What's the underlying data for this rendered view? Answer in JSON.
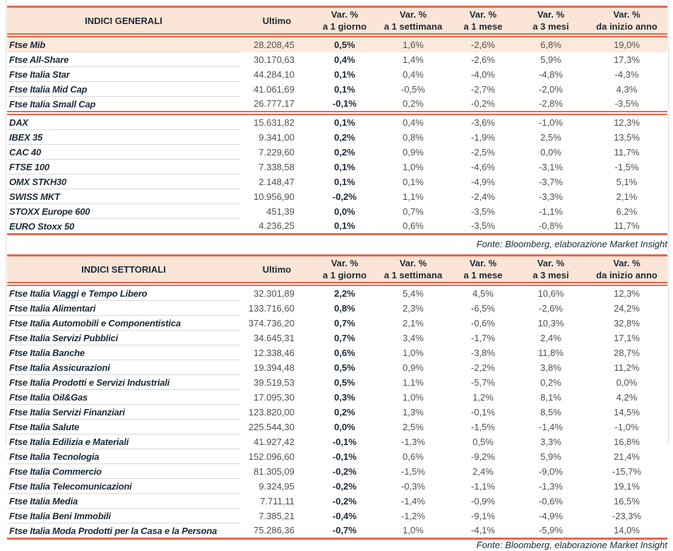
{
  "colors": {
    "accent_line": "#e8674e",
    "header_background": "#fbe5d6",
    "highlight_row_background": "#fce9dc",
    "heading_text": "#1b2a38",
    "value_text": "#4f4f4f",
    "row_separator": "#d9d9d9"
  },
  "columns": {
    "ultimo": "Ultimo",
    "var_label": "Var. %",
    "periods": [
      "a 1 giorno",
      "a 1 settimana",
      "a 1 mese",
      "a 3 mesi",
      "da inizio anno"
    ]
  },
  "tables": [
    {
      "title": "INDICI GENERALI",
      "source": "Fonte: Bloomberg, elaborazione Market Insight",
      "rows": [
        {
          "name": "Ftse Mib",
          "ultimo": "28.208,45",
          "pct": [
            "0,5%",
            "1,6%",
            "-2,6%",
            "6,8%",
            "19,0%"
          ],
          "highlight": true
        },
        {
          "name": "Ftse All-Share",
          "ultimo": "30.170,63",
          "pct": [
            "0,4%",
            "1,4%",
            "-2,6%",
            "5,9%",
            "17,3%"
          ]
        },
        {
          "name": "Ftse Italia Star",
          "ultimo": "44.284,10",
          "pct": [
            "0,1%",
            "0,4%",
            "-4,0%",
            "-4,8%",
            "-4,3%"
          ]
        },
        {
          "name": "Ftse Italia Mid Cap",
          "ultimo": "41.061,69",
          "pct": [
            "0,1%",
            "-0,5%",
            "-2,7%",
            "-2,0%",
            "4,3%"
          ]
        },
        {
          "name": "Ftse Italia Small Cap",
          "ultimo": "26.777,17",
          "pct": [
            "-0,1%",
            "0,2%",
            "-0,2%",
            "-2,8%",
            "-3,5%"
          ]
        },
        {
          "name": "DAX",
          "ultimo": "15.631,82",
          "pct": [
            "0,1%",
            "0,4%",
            "-3,6%",
            "-1,0%",
            "12,3%"
          ],
          "group_start": true
        },
        {
          "name": "IBEX 35",
          "ultimo": "9.341,00",
          "pct": [
            "0,2%",
            "0,8%",
            "-1,9%",
            "2,5%",
            "13,5%"
          ]
        },
        {
          "name": "CAC 40",
          "ultimo": "7.229,60",
          "pct": [
            "0,2%",
            "0,9%",
            "-2,5%",
            "0,0%",
            "11,7%"
          ]
        },
        {
          "name": "FTSE 100",
          "ultimo": "7.338,58",
          "pct": [
            "0,1%",
            "1,0%",
            "-4,6%",
            "-3,1%",
            "-1,5%"
          ]
        },
        {
          "name": "OMX STKH30",
          "ultimo": "2.148,47",
          "pct": [
            "0,1%",
            "0,1%",
            "-4,9%",
            "-3,7%",
            "5,1%"
          ]
        },
        {
          "name": "SWISS MKT",
          "ultimo": "10.956,90",
          "pct": [
            "-0,2%",
            "1,1%",
            "-2,4%",
            "-3,3%",
            "2,1%"
          ]
        },
        {
          "name": "STOXX Europe 600",
          "ultimo": "451,39",
          "pct": [
            "0,0%",
            "0,7%",
            "-3,5%",
            "-1,1%",
            "6,2%"
          ]
        },
        {
          "name": "EURO Stoxx 50",
          "ultimo": "4.236,25",
          "pct": [
            "0,1%",
            "0,6%",
            "-3,5%",
            "-0,8%",
            "11,7%"
          ]
        }
      ]
    },
    {
      "title": "INDICI SETTORIALI",
      "source": "Fonte: Bloomberg, elaborazione Market Insight",
      "rows": [
        {
          "name": "Ftse Italia Viaggi e Tempo Libero",
          "ultimo": "32.301,89",
          "pct": [
            "2,2%",
            "5,4%",
            "4,5%",
            "10,6%",
            "12,3%"
          ]
        },
        {
          "name": "Ftse Italia Alimentari",
          "ultimo": "133.716,60",
          "pct": [
            "0,8%",
            "2,3%",
            "-6,5%",
            "-2,6%",
            "24,2%"
          ]
        },
        {
          "name": "Ftse Italia Automobili e Componentistica",
          "ultimo": "374.736,20",
          "pct": [
            "0,7%",
            "2,1%",
            "-0,6%",
            "10,3%",
            "32,8%"
          ]
        },
        {
          "name": "Ftse Italia Servizi Pubblici",
          "ultimo": "34.645,31",
          "pct": [
            "0,7%",
            "3,4%",
            "-1,7%",
            "2,4%",
            "17,1%"
          ]
        },
        {
          "name": "Ftse Italia Banche",
          "ultimo": "12.338,46",
          "pct": [
            "0,6%",
            "1,0%",
            "-3,8%",
            "11,8%",
            "28,7%"
          ]
        },
        {
          "name": "Ftse Italia Assicurazioni",
          "ultimo": "19.394,48",
          "pct": [
            "0,5%",
            "0,9%",
            "-2,2%",
            "3,8%",
            "11,2%"
          ]
        },
        {
          "name": "Ftse Italia Prodotti e Servizi Industriali",
          "ultimo": "39.519,53",
          "pct": [
            "0,5%",
            "1,1%",
            "-5,7%",
            "0,2%",
            "0,0%"
          ]
        },
        {
          "name": "Ftse Italia Oil&Gas",
          "ultimo": "17.095,30",
          "pct": [
            "0,3%",
            "1,0%",
            "1,2%",
            "8,1%",
            "4,2%"
          ]
        },
        {
          "name": "Ftse Italia Servizi Finanziari",
          "ultimo": "123.820,00",
          "pct": [
            "0,2%",
            "1,3%",
            "-0,1%",
            "8,5%",
            "14,5%"
          ]
        },
        {
          "name": "Ftse Italia Salute",
          "ultimo": "225.544,30",
          "pct": [
            "0,0%",
            "2,5%",
            "-1,5%",
            "-1,4%",
            "-1,0%"
          ]
        },
        {
          "name": "Ftse Italia Edilizia e Materiali",
          "ultimo": "41.927,42",
          "pct": [
            "-0,1%",
            "-1,3%",
            "0,5%",
            "3,3%",
            "16,8%"
          ]
        },
        {
          "name": "Ftse Italia Tecnologia",
          "ultimo": "152.096,60",
          "pct": [
            "-0,1%",
            "0,6%",
            "-9,2%",
            "5,9%",
            "21,4%"
          ]
        },
        {
          "name": "Ftse Italia Commercio",
          "ultimo": "81.305,09",
          "pct": [
            "-0,2%",
            "-1,5%",
            "2,4%",
            "-9,0%",
            "-15,7%"
          ]
        },
        {
          "name": "Ftse Italia Telecomunicazioni",
          "ultimo": "9.324,95",
          "pct": [
            "-0,2%",
            "-0,3%",
            "-1,1%",
            "-1,3%",
            "19,1%"
          ]
        },
        {
          "name": "Ftse Italia Media",
          "ultimo": "7.711,11",
          "pct": [
            "-0,2%",
            "-1,4%",
            "-0,9%",
            "-0,6%",
            "16,5%"
          ]
        },
        {
          "name": "Ftse Italia Beni Immobili",
          "ultimo": "7.385,21",
          "pct": [
            "-0,4%",
            "-1,2%",
            "-9,1%",
            "-4,9%",
            "-23,3%"
          ]
        },
        {
          "name": "Ftse Italia Moda Prodotti per la Casa e la Persona",
          "ultimo": "75.286,36",
          "pct": [
            "-0,7%",
            "1,0%",
            "-4,1%",
            "-5,9%",
            "14,0%"
          ]
        }
      ]
    }
  ]
}
